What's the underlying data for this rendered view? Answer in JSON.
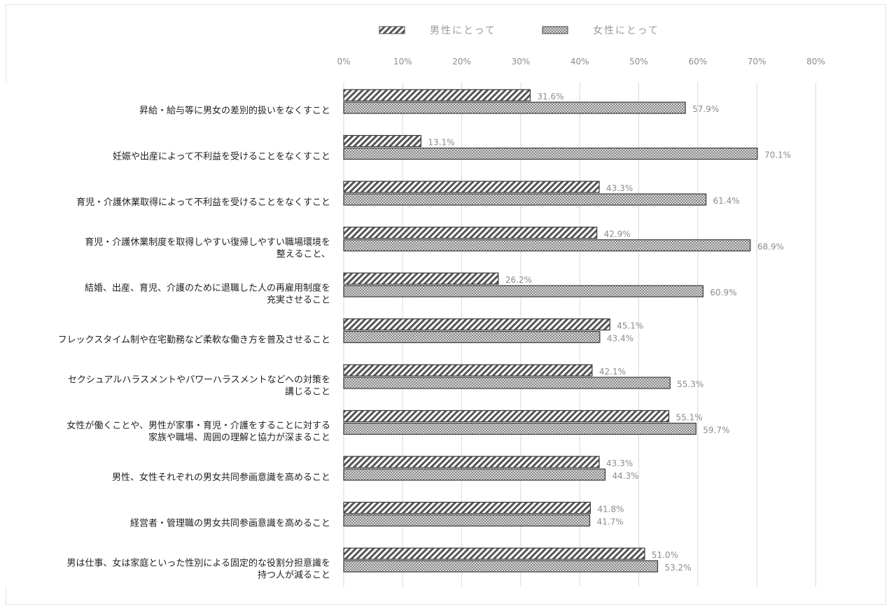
{
  "chart_data": {
    "type": "bar",
    "orientation": "horizontal",
    "categories": [
      [
        "昇給・給与等に男女の差別的扱いをなくすこと"
      ],
      [
        "妊娠や出産によって不利益を受けることをなくすこと"
      ],
      [
        "育児・介護休業取得によって不利益を受けることをなくすこと"
      ],
      [
        "育児・介護休業制度を取得しやすい復帰しやすい職場環境を",
        "整えること、"
      ],
      [
        "結婚、出産、育児、介護のために退職した人の再雇用制度を",
        "充実させること"
      ],
      [
        "フレックスタイム制や在宅勤務など柔軟な働き方を普及させること"
      ],
      [
        "セクシュアルハラスメントやパワーハラスメントなどへの対策を",
        "講じること"
      ],
      [
        "女性が働くことや、男性が家事・育児・介護をすることに対する",
        "家族や職場、周囲の理解と協力が深まること"
      ],
      [
        "男性、女性それぞれの男女共同参画意識を高めること"
      ],
      [
        "経営者・管理職の男女共同参画意識を高めること"
      ],
      [
        "男は仕事、女は家庭といった性別による固定的な役割分担意識を",
        "持つ人が減ること"
      ]
    ],
    "series": [
      {
        "name": "男性にとって",
        "values": [
          31.6,
          13.1,
          43.3,
          42.9,
          26.2,
          45.1,
          42.1,
          55.1,
          43.3,
          41.8,
          51.0
        ],
        "labels": [
          "31.6%",
          "13.1%",
          "43.3%",
          "42.9%",
          "26.2%",
          "45.1%",
          "42.1%",
          "55.1%",
          "43.3%",
          "41.8%",
          "51.0%"
        ],
        "pattern": "diagonal-hatch"
      },
      {
        "name": "女性にとって",
        "values": [
          57.9,
          70.1,
          61.4,
          68.9,
          60.9,
          43.4,
          55.3,
          59.7,
          44.3,
          41.7,
          53.2
        ],
        "labels": [
          "57.9%",
          "70.1%",
          "61.4%",
          "68.9%",
          "60.9%",
          "43.4%",
          "55.3%",
          "59.7%",
          "44.3%",
          "41.7%",
          "53.2%"
        ],
        "pattern": "crosshatch"
      }
    ],
    "xlim": [
      0,
      80
    ],
    "xticks": [
      "0%",
      "10%",
      "20%",
      "30%",
      "40%",
      "50%",
      "60%",
      "70%",
      "80%"
    ],
    "grid": true,
    "legend_position": "top"
  }
}
